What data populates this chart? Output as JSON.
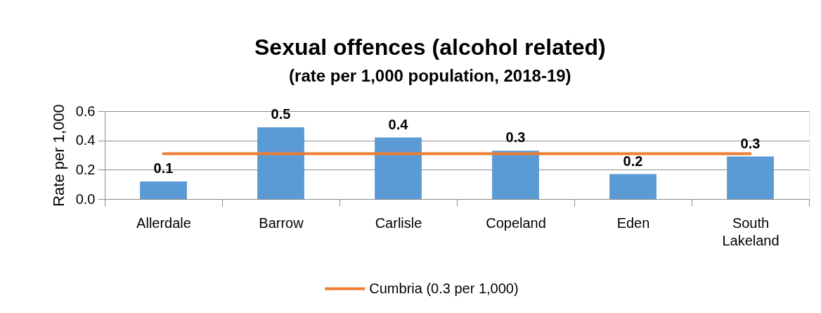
{
  "chart_data": {
    "type": "bar",
    "title": "Sexual offences (alcohol related)",
    "subtitle": "(rate per 1,000 population, 2018-19)",
    "ylabel": "Rate per 1,000",
    "categories": [
      "Allerdale",
      "Barrow",
      "Carlisle",
      "Copeland",
      "Eden",
      "South Lakeland"
    ],
    "series": [
      {
        "color": "#5b9bd5",
        "values": [
          0.12,
          0.49,
          0.42,
          0.33,
          0.17,
          0.29
        ],
        "value_labels": [
          "0.1",
          "0.5",
          "0.4",
          "0.3",
          "0.2",
          "0.3"
        ]
      },
      {
        "type": "line",
        "name": "Cumbria (0.3 per 1,000)",
        "color": "#ed7d31",
        "values": [
          0.31,
          0.31,
          0.31,
          0.31,
          0.31,
          0.31
        ]
      }
    ],
    "ylim": [
      0,
      0.6
    ],
    "yticks": [
      {
        "value": 0,
        "label": "0.0"
      },
      0.2,
      0.4,
      0.6
    ],
    "grid": "y",
    "legend": "bottom"
  }
}
